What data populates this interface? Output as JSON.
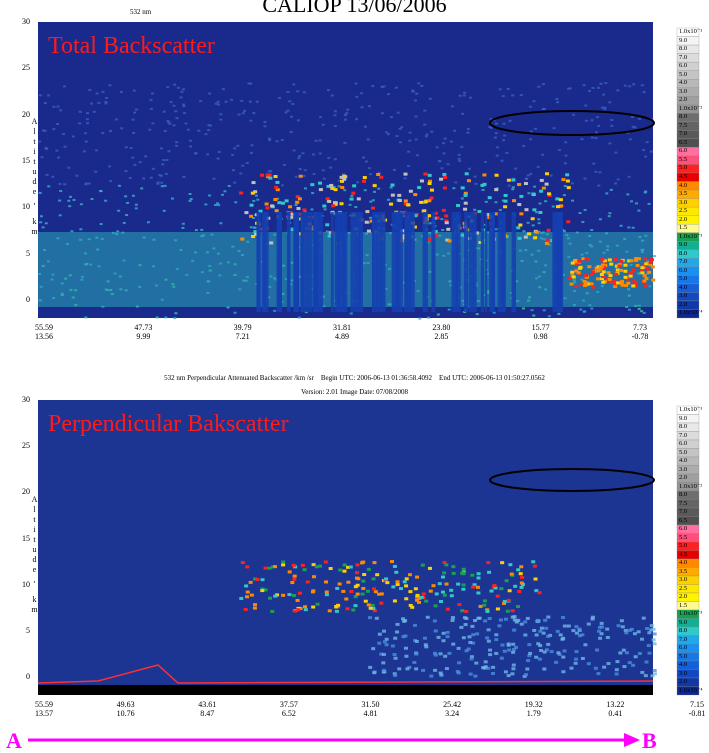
{
  "title": "CALIOP 13/06/2006",
  "panels": [
    {
      "wavelength": "532 nm",
      "label": "Total Backscatter",
      "y_axis_label": "Altitude, km",
      "y_ticks": [
        "30",
        "25",
        "20",
        "15",
        "10",
        "5",
        "0"
      ],
      "x_ticks": [
        [
          "55.59",
          "13.56"
        ],
        [
          "47.73",
          "9.99"
        ],
        [
          "39.79",
          "7.21"
        ],
        [
          "31.81",
          "4.89"
        ],
        [
          "23.80",
          "2.85"
        ],
        [
          "15.77",
          "0.98"
        ],
        [
          "7.73",
          "-0.78"
        ]
      ],
      "colorbar": [
        "1.0x10⁻¹",
        "9.0",
        "8.0",
        "7.0",
        "6.0",
        "5.0",
        "4.0",
        "3.0",
        "2.0",
        "1.0x10⁻²",
        "8.0",
        "7.5",
        "7.0",
        "6.5",
        "6.0",
        "5.5",
        "5.0",
        "4.5",
        "4.0",
        "3.5",
        "3.0",
        "2.5",
        "2.0",
        "1.5",
        "1.0x10⁻³",
        "9.0",
        "8.0",
        "7.0",
        "6.0",
        "5.0",
        "4.0",
        "3.0",
        "2.0",
        "1.0x10⁻⁴"
      ]
    },
    {
      "label": "Perpendicular Bakscatter",
      "y_axis_label": "Altitude, km",
      "y_ticks": [
        "30",
        "25",
        "20",
        "15",
        "10",
        "5",
        "0"
      ],
      "x_ticks": [
        [
          "55.59",
          "13.57"
        ],
        [
          "49.63",
          "10.76"
        ],
        [
          "43.61",
          "8.47"
        ],
        [
          "37.57",
          "6.52"
        ],
        [
          "31.50",
          "4.81"
        ],
        [
          "25.42",
          "3.24"
        ],
        [
          "19.32",
          "1.79"
        ],
        [
          "13.22",
          "0.41"
        ],
        [
          "7.15",
          "-0.81"
        ]
      ],
      "colorbar": [
        "1.0x10⁻¹",
        "9.0",
        "8.0",
        "7.0",
        "6.0",
        "5.0",
        "4.0",
        "3.0",
        "2.0",
        "1.0x10⁻²",
        "8.0",
        "7.5",
        "7.0",
        "6.5",
        "6.0",
        "5.5",
        "5.0",
        "4.5",
        "4.0",
        "3.5",
        "3.0",
        "2.5",
        "2.0",
        "1.5",
        "1.0x10⁻³",
        "9.0",
        "8.0",
        "7.0",
        "6.0",
        "5.0",
        "4.0",
        "3.0",
        "2.0",
        "1.0x10⁻⁴"
      ]
    }
  ],
  "caption": [
    "532 nm Perpendicular Attenuated Backscatter /km /sr    Begin UTC: 2006-06-13 01:36:58.4092    End UTC: 2006-06-13 01:50:27.0562",
    "Version: 2.01 Image Date: 07/08/2008"
  ],
  "direction": {
    "start": "A",
    "end": "B"
  }
}
